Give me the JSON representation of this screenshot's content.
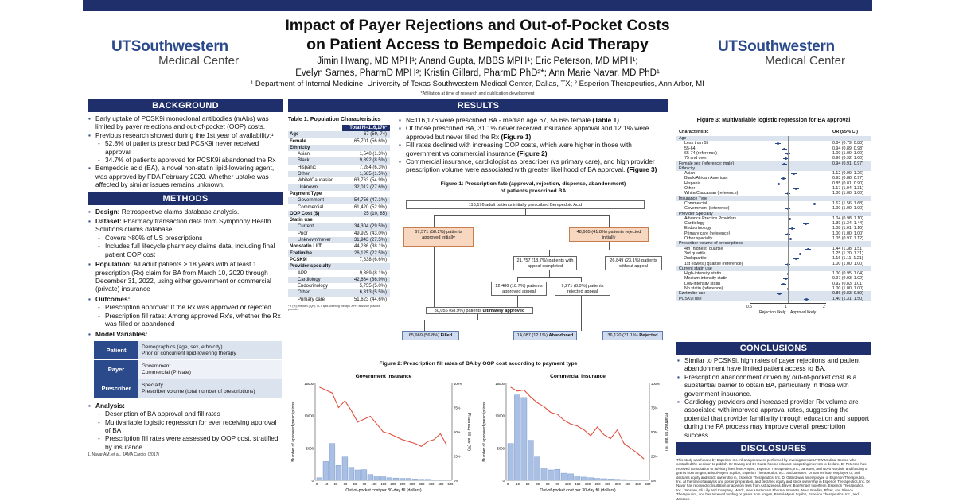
{
  "title": "Impact of Payer Rejections and Out-of-Pocket Costs on Patient Access to Bempedoic Acid Therapy",
  "title_line1": "Impact of Payer Rejections and Out-of-Pocket Costs",
  "title_line2": "on Patient Access to Bempedoic Acid Therapy",
  "authors_line1": "Jimin Hwang, MD MPH¹; Anand Gupta, MBBS MPH¹; Eric Peterson, MD MPH¹;",
  "authors_line2": "Evelyn Sarnes, PharmD MPH²; Kristin Gillard, PharmD PhD²*; Ann Marie Navar, MD PhD¹",
  "affiliations": "¹ Department of Internal Medicine, University of Texas Southwestern Medical Center, Dallas, TX;  ² Esperion Therapeutics, Ann Arbor, MI",
  "affiliation_note": "*Affiliation at time of research and publication development",
  "logo": {
    "line1": "UTSouthwestern",
    "line2": "Medical Center"
  },
  "colors": {
    "navy": "#1f2f6b",
    "brand_blue": "#2b4a8b",
    "bar_blue": "#a9c0e4",
    "line_red": "#e05040",
    "orange_box": "#f7d7c0",
    "blue_box": "#cfdbee"
  },
  "background": {
    "heading": "BACKGROUND",
    "b1": "Early uptake of PCSK9i monoclonal antibodies (mAbs) was limited by payer rejections and out-of-pocket (OOP) costs.",
    "b2": "Previous research showed during the 1st year of availability:¹",
    "b2_s1": "52.8% of patients prescribed PCSK9i never received approval",
    "b2_s2": "34.7% of patients approved for PCSK9i abandoned the Rx",
    "b3": "Bempedoic acid (BA), a novel non-statin lipid-lowering agent, was approved by FDA February 2020. Whether uptake was affected by similar issues remains unknown."
  },
  "methods": {
    "heading": "METHODS",
    "design_label": "Design:",
    "design": "Retrospective claims database analysis.",
    "dataset_label": "Dataset:",
    "dataset": "Pharmacy transaction data from Symphony Health Solutions claims database",
    "dataset_s1": "Covers >80% of US prescriptions",
    "dataset_s2": "Includes full lifecycle pharmacy claims data, including final patient OOP cost",
    "population_label": "Population:",
    "population": "All adult patients ≥ 18 years with at least 1 prescription (Rx) claim for BA from March 10, 2020 through December 31, 2022, using either government or commercial (private) insurance",
    "outcomes_label": "Outcomes:",
    "outcomes_s1": "Prescription approval: If the Rx was approved or rejected",
    "outcomes_s2": "Prescription fill rates: Among approved Rx's, whether the Rx was filled or abandoned",
    "model_label": "Model Variables:",
    "model_rows": [
      {
        "label": "Patient",
        "text": "Demographics (age, sex, ethnicity)\nPrior or concurrent lipid-lowering therapy"
      },
      {
        "label": "Payer",
        "text": "Government\nCommercial (Private)"
      },
      {
        "label": "Prescriber",
        "text": "Specialty\nPrescriber volume (total number of prescriptions)"
      }
    ],
    "analysis_label": "Analysis:",
    "analysis_s1": "Description of BA approval and fill rates",
    "analysis_s2": "Multivariable logistic regression for ever receiving approval of BA",
    "analysis_s3": "Prescription fill rates were assessed by OOP cost, stratified by insurance",
    "reference": "1. Navar AM, et al., JAMA Cardiol (2017)"
  },
  "results": {
    "heading": "RESULTS",
    "b1_a": "N=116,176 were prescribed BA - median age 67, 56.6% female ",
    "b1_b": "(Table 1)",
    "b2_a": "Of those prescribed BA, 31.1% never received insurance approval and 12.1% were approved but never filled the Rx ",
    "b2_b": "(Figure 1)",
    "b3_a": "Fill rates declined with increasing OOP costs, which were higher in those with government vs commercial insurance ",
    "b3_b": "(Figure 2)",
    "b4_a": "Commercial insurance, cardiologist as prescriber (vs primary care), and high provider prescription volume were associated with greater likelihood of BA approval. ",
    "b4_b": "(Figure 3)"
  },
  "table1": {
    "title": "Table 1: Population Characteristics",
    "header": "Total N=116,176¹",
    "rows": [
      {
        "label": "Age",
        "value": "67 (59, 74)",
        "bold": true,
        "indent": false
      },
      {
        "label": "Female",
        "value": "65,701 (56.6%)",
        "bold": true,
        "indent": false
      },
      {
        "label": "Ethnicity",
        "value": "",
        "bold": true,
        "indent": false
      },
      {
        "label": "Asian",
        "value": "1,540 (1.3%)",
        "bold": false,
        "indent": true
      },
      {
        "label": "Black",
        "value": "9,892 (8.5%)",
        "bold": false,
        "indent": true
      },
      {
        "label": "Hispanic",
        "value": "7,284 (6.3%)",
        "bold": false,
        "indent": true
      },
      {
        "label": "Other",
        "value": "1,685 (1.5%)",
        "bold": false,
        "indent": true
      },
      {
        "label": "White/Caucasian",
        "value": "63,763 (54.9%)",
        "bold": false,
        "indent": true
      },
      {
        "label": "Unknown",
        "value": "32,012 (27.6%)",
        "bold": false,
        "indent": true
      },
      {
        "label": "Payment Type",
        "value": "",
        "bold": true,
        "indent": false
      },
      {
        "label": "Government",
        "value": "54,756 (47.1%)",
        "bold": false,
        "indent": true
      },
      {
        "label": "Commercial",
        "value": "61,420 (52.9%)",
        "bold": false,
        "indent": true
      },
      {
        "label": "OOP Cost ($)",
        "value": "25 (10, 85)",
        "bold": true,
        "indent": false
      },
      {
        "label": "Statin use",
        "value": "",
        "bold": true,
        "indent": false
      },
      {
        "label": "Current",
        "value": "34,304 (29.5%)",
        "bold": false,
        "indent": true
      },
      {
        "label": "Prior",
        "value": "49,929 (43.0%)",
        "bold": false,
        "indent": true
      },
      {
        "label": "Unknown/never",
        "value": "31,943 (27.5%)",
        "bold": false,
        "indent": true
      },
      {
        "label": "Nonstatin LLT",
        "value": "44,236 (38.1%)",
        "bold": true,
        "indent": false
      },
      {
        "label": "Ezetimibe",
        "value": "26,125 (22.5%)",
        "bold": true,
        "indent": false
      },
      {
        "label": "PCSK9i",
        "value": "7,638 (6.6%)",
        "bold": true,
        "indent": false
      },
      {
        "label": "Provider specialty",
        "value": "",
        "bold": true,
        "indent": false
      },
      {
        "label": "APP",
        "value": "9,389 (8.1%)",
        "bold": false,
        "indent": true
      },
      {
        "label": "Cardiology",
        "value": "42,684 (36.9%)",
        "bold": false,
        "indent": true
      },
      {
        "label": "Endocrinology",
        "value": "5,755 (5.0%)",
        "bold": false,
        "indent": true
      },
      {
        "label": "Other",
        "value": "6,313 (5.5%)",
        "bold": false,
        "indent": true
      },
      {
        "label": "Primary care",
        "value": "51,623 (44.6%)",
        "bold": false,
        "indent": true
      }
    ],
    "footnote": "¹ n (%); median (IQR). LLT: lipid-lowering therapy. APP: advance practice provider."
  },
  "figure1": {
    "title_line1": "Figure 1: Prescription fate (approval, rejection, dispense, abandonment)",
    "title_line2": "of patients prescribed BA",
    "top": "116,176 adult patients initially prescribed Bempedoic Acid",
    "approved": "67,571 (58.2%) patients approved initially",
    "rejected": "48,605 (41.8%) patients rejected initially",
    "appeal": "21,757 (18.7%) patients with appeal completed",
    "no_appeal": "26,849 (23.1%) patients without appeal",
    "appeal_approved": "12,486 (10.7%) patients approved appeal",
    "appeal_rejected": "9,271 (8.0%) patients rejected appeal",
    "ultimately_a": "80,056 (68.9%) patients ",
    "ultimately_b": "ultimately approved",
    "filled_a": "65,969 (56.8%) ",
    "filled_b": "Filled",
    "abandoned_a": "14,087 (12.1%) ",
    "abandoned_b": "Abandoned",
    "final_rejected_a": "36,120 (31.1%) ",
    "final_rejected_b": "Rejected"
  },
  "chart_data": [
    {
      "type": "bar",
      "title": "Government Insurance",
      "xlabel": "Out-of-pocket cost per 30-day fill (dollars)",
      "ylabel": "Number of approved prescriptions",
      "y2label": "Pharmacy fill rate (%)",
      "x_ticks": [
        "0",
        "10",
        "20",
        "30",
        "50",
        "80",
        "100",
        "150",
        "200",
        "250",
        "300",
        "350",
        "400",
        "450",
        "500"
      ],
      "ylim": [
        0,
        15000
      ],
      "y_ticks": [
        0,
        5000,
        10000,
        15000
      ],
      "y2_ticks": [
        "0%",
        "25%",
        "50%",
        "75%",
        "100%"
      ],
      "series": [
        {
          "values": [
            400,
            2900,
            5700,
            2300,
            3600,
            2000,
            1600,
            1650,
            900,
            700,
            550,
            400,
            350,
            300,
            300,
            200,
            150,
            150,
            100,
            100,
            100
          ]
        },
        {
          "type": "line",
          "values": [
            96,
            93,
            90,
            75,
            82,
            72,
            60,
            63,
            66,
            58,
            50,
            48,
            45,
            42,
            40,
            38,
            35,
            40,
            42,
            48,
            36
          ]
        }
      ]
    },
    {
      "type": "bar",
      "title": "Commercial Insurance",
      "xlabel": "Out-of-pocket cost per 30-day fill (dollars)",
      "ylabel": "Number of approved prescriptions",
      "y2label": "Pharmacy fill rate (%)",
      "x_ticks": [
        "0",
        "10",
        "20",
        "30",
        "50",
        "80",
        "100",
        "150",
        "200",
        "250",
        "300",
        "350",
        "400",
        "450",
        "500"
      ],
      "ylim": [
        0,
        15000
      ],
      "y_ticks": [
        0,
        5000,
        10000,
        15000
      ],
      "y2_ticks": [
        "0%",
        "25%",
        "50%",
        "75%",
        "100%"
      ],
      "series": [
        {
          "values": [
            5700,
            13200,
            12800,
            6200,
            3600,
            1900,
            1600,
            1700,
            1100,
            1000,
            700,
            500,
            400,
            300,
            250,
            200,
            150,
            120,
            100,
            80,
            60
          ]
        },
        {
          "type": "line",
          "values": [
            96,
            92,
            93,
            86,
            80,
            76,
            70,
            68,
            62,
            58,
            56,
            52,
            46,
            55,
            47,
            43,
            52,
            38,
            33,
            28,
            22
          ]
        }
      ]
    },
    {
      "type": "forest",
      "title": "Figure 3: Multivariable logistic regression for BA approval",
      "header_char": "Characteristic",
      "header_or": "OR (95% CI)",
      "xlabel_left": "Rejection likely",
      "xlabel_right": "Approval likely",
      "x_ticks": [
        "0.5",
        "1",
        "2"
      ],
      "rows": [
        {
          "label": "Age",
          "or": "",
          "group": true
        },
        {
          "label": "Less than 55",
          "or": "0.84 (0.79, 0.88)",
          "est": 0.84
        },
        {
          "label": "55-64",
          "or": "0.94 (0.89, 0.98)",
          "est": 0.94
        },
        {
          "label": "65-74 (reference)",
          "or": "1.00 (1.00, 1.00)",
          "est": 1.0
        },
        {
          "label": "75 and over",
          "or": "0.96 (0.92, 1.00)",
          "est": 0.96
        },
        {
          "label": "Female sex (reference: male)",
          "or": "0.94 (0.91, 0.97)",
          "est": 0.94,
          "group": true
        },
        {
          "label": "Ethnicity",
          "or": "",
          "group": true
        },
        {
          "label": "Asian",
          "or": "1.12 (0.99, 1.26)",
          "est": 1.12
        },
        {
          "label": "Black/African American",
          "or": "0.93 (0.88, 0.97)",
          "est": 0.93
        },
        {
          "label": "Hispanic",
          "or": "0.85 (0.81, 0.90)",
          "est": 0.85
        },
        {
          "label": "Other",
          "or": "1.17 (1.04, 1.31)",
          "est": 1.17
        },
        {
          "label": "White/Caucasian (reference)",
          "or": "1.00 (1.00, 1.00)",
          "est": 1.0
        },
        {
          "label": "Insurance Type",
          "or": "",
          "group": true
        },
        {
          "label": "Commercial",
          "or": "1.62 (1.56, 1.68)",
          "est": 1.62
        },
        {
          "label": "Government (reference)",
          "or": "1.00 (1.00, 1.00)",
          "est": 1.0
        },
        {
          "label": "Provider Specialty",
          "or": "",
          "group": true
        },
        {
          "label": "Advance Practice Providers",
          "or": "1.04 (0.98, 1.10)",
          "est": 1.04
        },
        {
          "label": "Cardiology",
          "or": "1.39 (1.34, 1.44)",
          "est": 1.39
        },
        {
          "label": "Endocrinology",
          "or": "1.08 (1.01, 1.16)",
          "est": 1.08
        },
        {
          "label": "Primary care (reference)",
          "or": "1.00 (1.00, 1.00)",
          "est": 1.0
        },
        {
          "label": "Other specialty",
          "or": "1.05 (0.97, 1.12)",
          "est": 1.05
        },
        {
          "label": "Prescriber volume of prescriptions",
          "or": "",
          "group": true
        },
        {
          "label": "4th (highest) quartile",
          "or": "1.44 (1.38, 1.51)",
          "est": 1.44
        },
        {
          "label": "3rd quartile",
          "or": "1.25 (1.20, 1.31)",
          "est": 1.25
        },
        {
          "label": "2nd quartile",
          "or": "1.16 (1.11, 1.21)",
          "est": 1.16
        },
        {
          "label": "1st (lowest) quartile (reference)",
          "or": "1.00 (1.00, 1.00)",
          "est": 1.0
        },
        {
          "label": "Current statin use",
          "or": "",
          "group": true
        },
        {
          "label": "High-intensity statin",
          "or": "1.00 (0.95, 1.04)",
          "est": 1.0
        },
        {
          "label": "Medium-intensity statin",
          "or": "0.97 (0.93, 1.02)",
          "est": 0.97
        },
        {
          "label": "Low-intensity statin",
          "or": "0.92 (0.83, 1.01)",
          "est": 0.92
        },
        {
          "label": "No statin (reference)",
          "or": "1.00 (1.00, 1.00)",
          "est": 1.0
        },
        {
          "label": "Ezetimibe use",
          "or": "0.86 (0.83, 0.89)",
          "est": 0.86,
          "group": true
        },
        {
          "label": "PCSK9i use",
          "or": "1.40 (1.31, 1.50)",
          "est": 1.4,
          "group": true
        }
      ]
    }
  ],
  "figure2_title": "Figure 2: Prescription fill rates of BA by OOP cost according to payment type",
  "conclusions": {
    "heading": "CONCLUSIONS",
    "b1": "Similar to PCSK9i, high rates of payer rejections and patient abandonment have limited patient access to BA.",
    "b2": "Prescription abandonment driven by out-of-pocket cost is a substantial barrier to obtain BA, particularly in those with government insurance.",
    "b3": "Cardiology providers and increased provider Rx volume are associated with improved approval rates, suggesting the potential that provider familiarity through education and support during the PA process may improve overall prescription success."
  },
  "disclosures": {
    "heading": "DISCLOSURES",
    "text": "This study was funded by Esperion, Inc. All analyses were performed by investigators at UTSW Medical Center, who controlled the decision to publish. Dr Hwang and Dr Gupta has no relevant competing interests to declare. Dr Peterson has received consultation or advisory fees from Amgen, Esperion Therapeutics, Inc., Janssen, and Novo Nordisk, and funding or grants from Amgen, Bristol-Myers Squibb, Esperion Therapeutics, Inc., and Janssen. Dr Sarnes is an employee of, and declares equity and stock ownership in, Esperion Therapeutics, Inc. Dr Gillard was an employee of Esperion Therapeutics, Inc. at the time of analysis and poster preparation, and declares equity and stock ownership in Esperion Therapeutics, Inc. Dr Navar has received consultation or advisory fees from AstraZeneca, Bayer, Boehringer Ingelheim, Esperion Therapeutics, Inc., Janssen, Eli Lilly and Company, Merck, New Amsterdam Pharma, Novartis, Novo Nordisk, Pfizer, and Silence Therapeutics, and has received funding or grants from Amgen, Bristol-Myers Squibb, Esperion Therapeutics, Inc., and Janssen."
  }
}
